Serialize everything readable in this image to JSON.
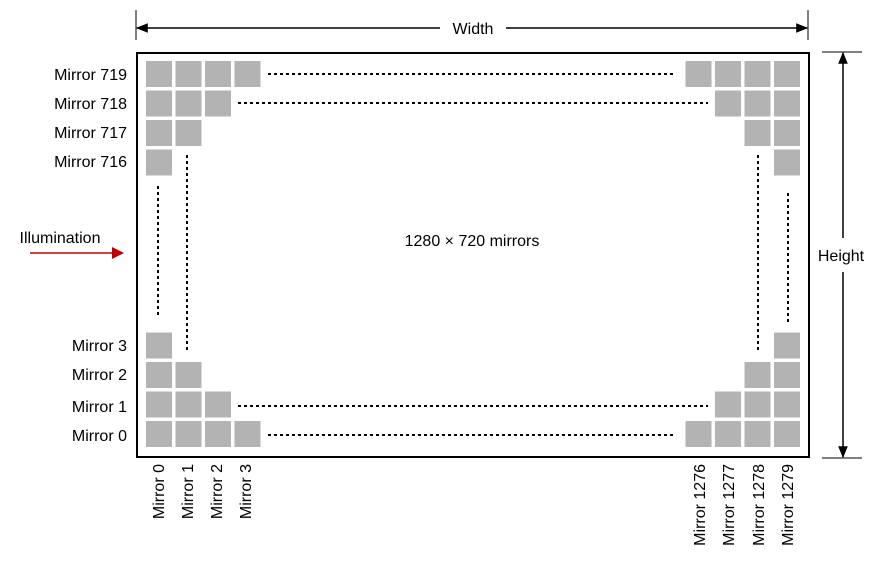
{
  "labels": {
    "width": "Width",
    "height": "Height",
    "illumination": "Illumination",
    "center": "1280 × 720 mirrors"
  },
  "row_labels": [
    "Mirror 719",
    "Mirror 718",
    "Mirror 717",
    "Mirror 716",
    "Mirror 3",
    "Mirror 2",
    "Mirror 1",
    "Mirror 0"
  ],
  "col_labels": [
    "Mirror 0",
    "Mirror 1",
    "Mirror 2",
    "Mirror 3",
    "Mirror 1276",
    "Mirror 1277",
    "Mirror 1278",
    "Mirror 1279"
  ],
  "colors": {
    "mirror": "#b3b3b3",
    "frame": "#000000",
    "illumination_arrow": "#c00000"
  }
}
